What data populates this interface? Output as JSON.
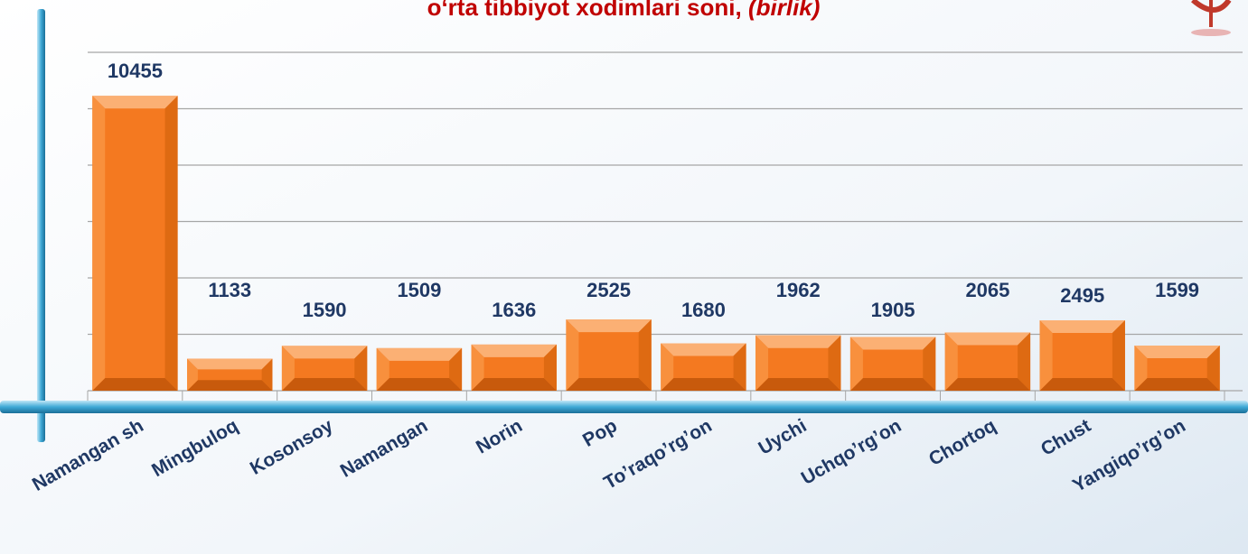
{
  "chart_data": {
    "type": "bar",
    "title": "o‘rta tibbiyot xodimlari soni,",
    "title_note": "(birlik)",
    "categories": [
      "Namangan sh",
      "Mingbuloq",
      "Kosonsoy",
      "Namangan",
      "Norin",
      "Pop",
      "To’raqo’rg’on",
      "Uychi",
      "Uchqo’rg’on",
      "Chortoq",
      "Chust",
      "Yangiqo’rg’on"
    ],
    "values": [
      10455,
      1133,
      1590,
      1509,
      1636,
      2525,
      1680,
      1962,
      1905,
      2065,
      2495,
      1599
    ],
    "color": "#f47920",
    "ylim": [
      0,
      12000
    ],
    "yticks": [
      0,
      2000,
      4000,
      6000,
      8000,
      10000,
      12000
    ],
    "grid": true
  }
}
